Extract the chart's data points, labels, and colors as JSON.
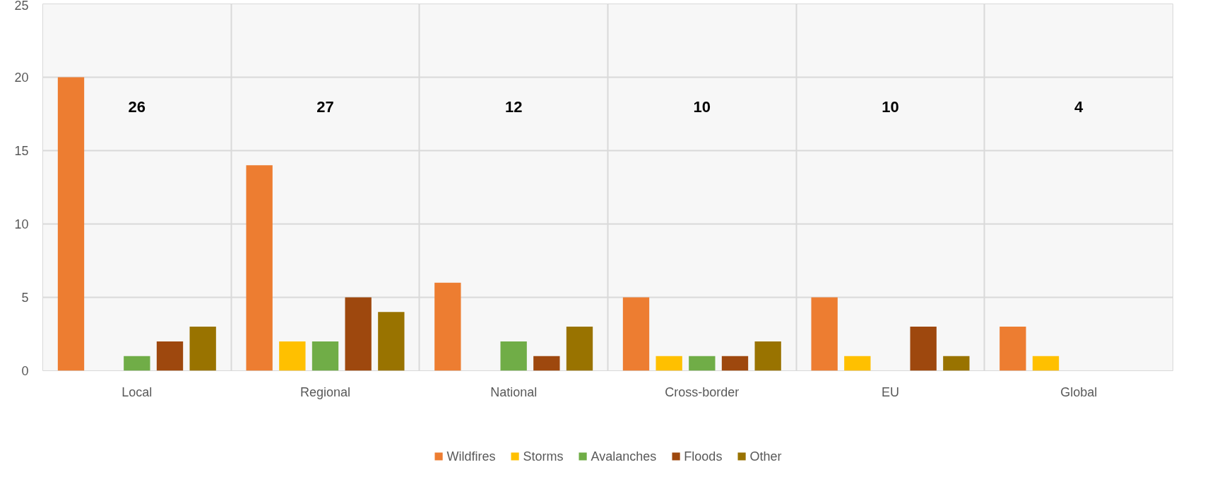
{
  "chart_data": {
    "type": "bar",
    "categories": [
      "Local",
      "Regional",
      "National",
      "Cross-border",
      "EU",
      "Global"
    ],
    "series": [
      {
        "name": "Wildfires",
        "color": "#ed7d31",
        "values": [
          20,
          14,
          6,
          5,
          5,
          3
        ]
      },
      {
        "name": "Storms",
        "color": "#ffc000",
        "values": [
          0,
          2,
          0,
          1,
          1,
          1
        ]
      },
      {
        "name": "Avalanches",
        "color": "#70ad47",
        "values": [
          1,
          2,
          2,
          1,
          0,
          0
        ]
      },
      {
        "name": "Floods",
        "color": "#9e480e",
        "values": [
          2,
          5,
          1,
          1,
          3,
          0
        ]
      },
      {
        "name": "Other",
        "color": "#997300",
        "values": [
          3,
          4,
          3,
          2,
          1,
          0
        ]
      }
    ],
    "annotations": [
      "26",
      "27",
      "12",
      "10",
      "10",
      "4"
    ],
    "ylim": [
      0,
      25
    ],
    "yticks": [
      0,
      5,
      10,
      15,
      20,
      25
    ],
    "grid": true,
    "legend": "bottom"
  }
}
